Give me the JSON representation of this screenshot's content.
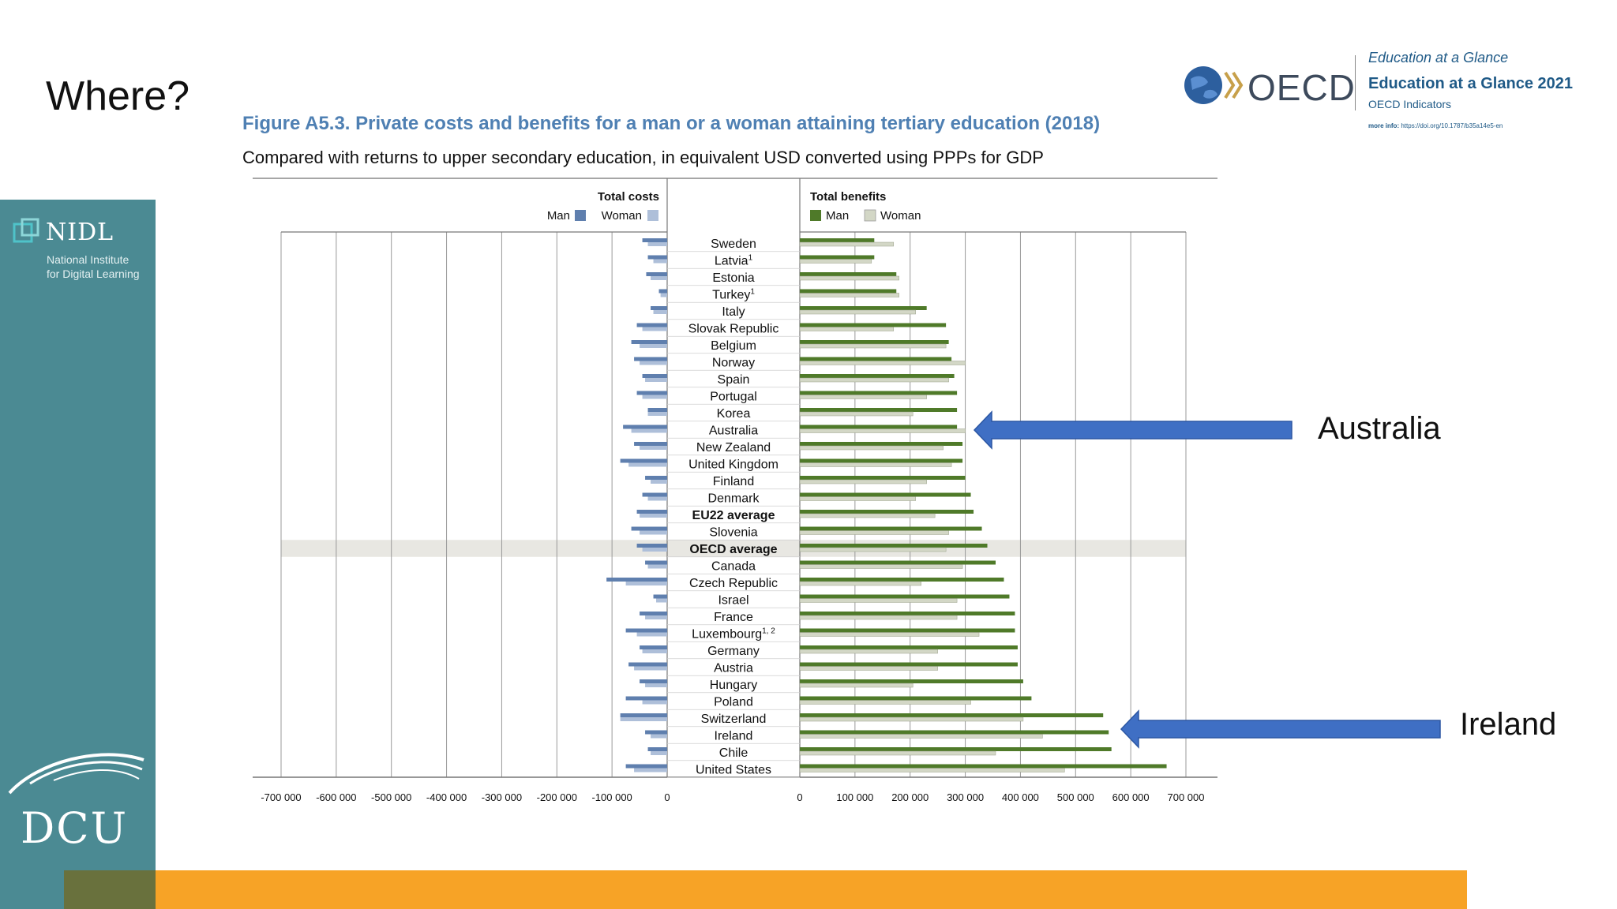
{
  "slide": {
    "title": "Where?"
  },
  "branding": {
    "nidl_name": "NIDL",
    "nidl_sub1": "National Institute",
    "nidl_sub2": "for Digital Learning",
    "dcu": "DCU",
    "oecd_word": "OECD",
    "oecd_eag_italic": "Education at a Glance",
    "oecd_eag_2021": "Education at a Glance 2021",
    "oecd_indicators": "OECD Indicators",
    "oecd_more_label": "more info:",
    "oecd_more_url": "https://doi.org/10.1787/b35a14e5-en"
  },
  "colors": {
    "cost_man": "#5f7fae",
    "cost_woman": "#aebfd9",
    "benefit_man": "#4f7a29",
    "benefit_woman": "#d3d7c6",
    "arrow": "#3f6fc4",
    "sidebar": "#4b8a93",
    "orange": "#f7a326"
  },
  "annotations": {
    "australia": "Australia",
    "ireland": "Ireland"
  },
  "chart_data": {
    "type": "bar",
    "orientation": "horizontal-butterfly",
    "title": "Figure A5.3. Private costs and benefits for a man or a woman attaining tertiary education (2018)",
    "subtitle": "Compared with returns to upper secondary education, in equivalent USD converted using PPPs for GDP",
    "left_panel": {
      "title": "Total costs",
      "legend": [
        "Man",
        "Woman"
      ],
      "xlim": [
        -700000,
        0
      ],
      "ticks": [
        "-700 000",
        "-600 000",
        "-500 000",
        "-400 000",
        "-300 000",
        "-200 000",
        "-100 000",
        "0"
      ]
    },
    "right_panel": {
      "title": "Total benefits",
      "legend": [
        "Man",
        "Woman"
      ],
      "xlim": [
        0,
        700000
      ],
      "ticks": [
        "0",
        "100 000",
        "200 000",
        "300 000",
        "400 000",
        "500 000",
        "600 000",
        "700 000"
      ]
    },
    "highlighted_category": "OECD average",
    "bold_categories": [
      "EU22 average",
      "OECD average"
    ],
    "categories": [
      {
        "name": "Sweden",
        "sup": ""
      },
      {
        "name": "Latvia",
        "sup": "1"
      },
      {
        "name": "Estonia",
        "sup": ""
      },
      {
        "name": "Turkey",
        "sup": "1"
      },
      {
        "name": "Italy",
        "sup": ""
      },
      {
        "name": "Slovak Republic",
        "sup": ""
      },
      {
        "name": "Belgium",
        "sup": ""
      },
      {
        "name": "Norway",
        "sup": ""
      },
      {
        "name": "Spain",
        "sup": ""
      },
      {
        "name": "Portugal",
        "sup": ""
      },
      {
        "name": "Korea",
        "sup": ""
      },
      {
        "name": "Australia",
        "sup": ""
      },
      {
        "name": "New Zealand",
        "sup": ""
      },
      {
        "name": "United Kingdom",
        "sup": ""
      },
      {
        "name": "Finland",
        "sup": ""
      },
      {
        "name": "Denmark",
        "sup": ""
      },
      {
        "name": "EU22 average",
        "sup": ""
      },
      {
        "name": "Slovenia",
        "sup": ""
      },
      {
        "name": "OECD average",
        "sup": ""
      },
      {
        "name": "Canada",
        "sup": ""
      },
      {
        "name": "Czech Republic",
        "sup": ""
      },
      {
        "name": "Israel",
        "sup": ""
      },
      {
        "name": "France",
        "sup": ""
      },
      {
        "name": "Luxembourg",
        "sup": "1, 2"
      },
      {
        "name": "Germany",
        "sup": ""
      },
      {
        "name": "Austria",
        "sup": ""
      },
      {
        "name": "Hungary",
        "sup": ""
      },
      {
        "name": "Poland",
        "sup": ""
      },
      {
        "name": "Switzerland",
        "sup": ""
      },
      {
        "name": "Ireland",
        "sup": ""
      },
      {
        "name": "Chile",
        "sup": ""
      },
      {
        "name": "United States",
        "sup": ""
      }
    ],
    "series": [
      {
        "name": "Total costs - Man",
        "values": [
          -45000,
          -35000,
          -38000,
          -15000,
          -30000,
          -55000,
          -65000,
          -60000,
          -45000,
          -55000,
          -35000,
          -80000,
          -60000,
          -85000,
          -40000,
          -45000,
          -55000,
          -65000,
          -55000,
          -40000,
          -110000,
          -25000,
          -50000,
          -75000,
          -50000,
          -70000,
          -50000,
          -75000,
          -85000,
          -40000,
          -35000,
          -75000
        ]
      },
      {
        "name": "Total costs - Woman",
        "values": [
          -35000,
          -25000,
          -30000,
          -12000,
          -25000,
          -45000,
          -50000,
          -50000,
          -40000,
          -45000,
          -35000,
          -65000,
          -50000,
          -70000,
          -30000,
          -35000,
          -50000,
          -50000,
          -45000,
          -35000,
          -75000,
          -20000,
          -40000,
          -55000,
          -45000,
          -60000,
          -40000,
          -45000,
          -85000,
          -30000,
          -30000,
          -60000
        ]
      },
      {
        "name": "Total benefits - Man",
        "values": [
          135000,
          135000,
          175000,
          175000,
          230000,
          265000,
          270000,
          275000,
          280000,
          285000,
          285000,
          285000,
          295000,
          295000,
          300000,
          310000,
          315000,
          330000,
          340000,
          355000,
          370000,
          380000,
          390000,
          390000,
          395000,
          395000,
          405000,
          420000,
          550000,
          560000,
          565000,
          665000
        ]
      },
      {
        "name": "Total benefits - Woman",
        "values": [
          170000,
          130000,
          180000,
          180000,
          210000,
          170000,
          265000,
          300000,
          270000,
          230000,
          205000,
          300000,
          260000,
          275000,
          230000,
          210000,
          245000,
          270000,
          265000,
          295000,
          220000,
          285000,
          285000,
          325000,
          250000,
          250000,
          205000,
          310000,
          405000,
          440000,
          355000,
          480000
        ]
      }
    ]
  }
}
